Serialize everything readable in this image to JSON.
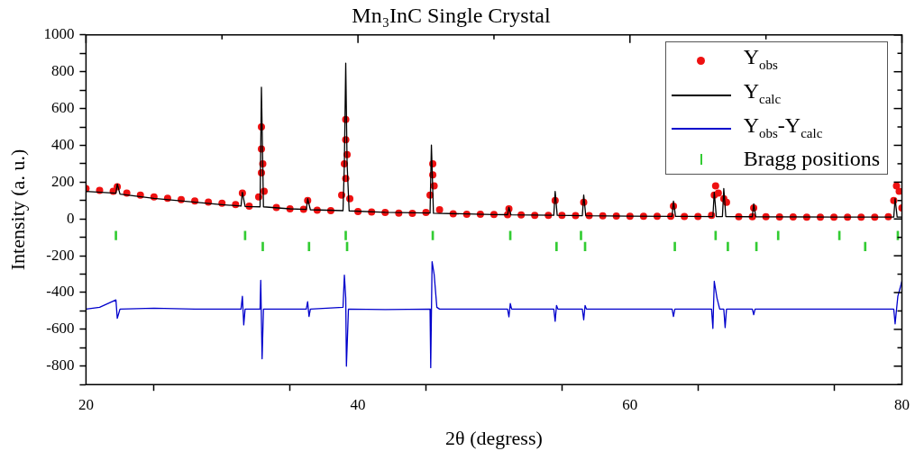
{
  "chart_data": {
    "type": "line",
    "title": "Mn₃InC Single Crystal",
    "xlabel": "2θ (degress)",
    "ylabel": "Intensity (a. u.)",
    "xlim": [
      20,
      80
    ],
    "xticks": [
      20,
      {
        "value": 30,
        "label": null
      },
      40,
      {
        "value": 50,
        "label": null
      },
      60,
      {
        "value": 70,
        "label": null
      },
      80
    ],
    "ylim": [
      -900,
      1000
    ],
    "yticks": [
      {
        "value": -900,
        "label": null
      },
      -800,
      {
        "value": -700,
        "label": null
      },
      -600,
      {
        "value": -500,
        "label": null
      },
      -400,
      {
        "value": -300,
        "label": null
      },
      -200,
      {
        "value": -100,
        "label": null
      },
      0,
      {
        "value": 100,
        "label": null
      },
      200,
      {
        "value": 300,
        "label": null
      },
      400,
      {
        "value": 500,
        "label": null
      },
      600,
      {
        "value": 700,
        "label": null
      },
      800,
      {
        "value": 900,
        "label": null
      },
      1000
    ],
    "grid": false,
    "legend": "top right",
    "series": [
      {
        "name": "Y$_{obs}$",
        "type": "scatter",
        "marker": "circle",
        "color": "#ee1111",
        "x": [
          20,
          21,
          22,
          22.3,
          23,
          24,
          25,
          26,
          27,
          28,
          29,
          30,
          31,
          31.5,
          32,
          32.7,
          32.9,
          32.9,
          32.9,
          33.0,
          33.1,
          34,
          35,
          36,
          36.3,
          37,
          38,
          38.8,
          39.0,
          39.1,
          39.1,
          39.1,
          39.2,
          39.4,
          40,
          41,
          42,
          43,
          44,
          45,
          45.3,
          45.5,
          45.5,
          45.6,
          46,
          47,
          48,
          49,
          50,
          51,
          51.1,
          52,
          53,
          54,
          54.5,
          55,
          56,
          56.6,
          57,
          58,
          59,
          60,
          61,
          62,
          63,
          63.2,
          64,
          65,
          66,
          66.2,
          66.3,
          66.5,
          66.9,
          67.1,
          68,
          69,
          69.1,
          70,
          71,
          72,
          73,
          74,
          75,
          76,
          77,
          78,
          79,
          79.4,
          79.6,
          79.8,
          80
        ],
        "values": [
          165,
          155,
          150,
          175,
          140,
          130,
          120,
          112,
          105,
          98,
          92,
          85,
          78,
          140,
          70,
          120,
          250,
          380,
          500,
          300,
          150,
          62,
          55,
          52,
          100,
          48,
          45,
          130,
          300,
          430,
          540,
          220,
          350,
          110,
          40,
          38,
          35,
          32,
          30,
          35,
          130,
          300,
          240,
          180,
          50,
          28,
          26,
          25,
          24,
          23,
          55,
          22,
          20,
          20,
          100,
          20,
          18,
          90,
          18,
          17,
          16,
          15,
          15,
          14,
          14,
          70,
          13,
          13,
          20,
          130,
          180,
          140,
          110,
          90,
          12,
          12,
          60,
          12,
          11,
          11,
          10,
          10,
          10,
          10,
          10,
          10,
          12,
          100,
          180,
          150,
          60
        ]
      },
      {
        "name": "Y$_{calc}$",
        "color": "#000000",
        "x": [
          20,
          22.2,
          22.3,
          22.5,
          25,
          30,
          31.4,
          31.5,
          31.7,
          32.8,
          32.9,
          33.05,
          35,
          36.2,
          36.3,
          36.5,
          38.9,
          39.0,
          39.1,
          39.2,
          39.35,
          42,
          45.3,
          45.4,
          45.55,
          50,
          51.0,
          51.1,
          51.25,
          54.4,
          54.5,
          54.65,
          56.5,
          56.6,
          56.75,
          60,
          63.1,
          63.2,
          63.35,
          66.1,
          66.2,
          66.35,
          66.8,
          66.9,
          67.05,
          69.0,
          69.1,
          69.25,
          75,
          79.4,
          79.5,
          79.65,
          80
        ],
        "values": [
          150,
          140,
          190,
          135,
          112,
          78,
          70,
          145,
          68,
          66,
          716,
          66,
          55,
          52,
          110,
          50,
          45,
          300,
          847,
          300,
          44,
          36,
          32,
          402,
          31,
          24,
          23,
          63,
          22,
          20,
          150,
          20,
          18,
          130,
          18,
          15,
          14,
          97,
          14,
          13,
          145,
          13,
          13,
          165,
          13,
          12,
          82,
          12,
          10,
          10,
          111,
          10,
          10
        ]
      },
      {
        "name": "Y$_{obs}$-Y$_{calc}$",
        "color": "#0000cc",
        "x": [
          20,
          21,
          22.2,
          22.3,
          22.5,
          25,
          28,
          31.4,
          31.5,
          31.6,
          31.7,
          32.8,
          32.85,
          32.95,
          33.05,
          36.2,
          36.3,
          36.4,
          36.5,
          38.9,
          39.0,
          39.1,
          39.15,
          39.3,
          42,
          45.3,
          45.35,
          45.45,
          45.6,
          45.8,
          46,
          51.0,
          51.1,
          51.2,
          51.3,
          54.4,
          54.5,
          54.6,
          54.7,
          56.5,
          56.6,
          56.7,
          56.8,
          63.1,
          63.2,
          63.3,
          66.0,
          66.1,
          66.2,
          66.4,
          66.6,
          66.9,
          67.0,
          67.1,
          69.0,
          69.1,
          69.2,
          79.4,
          79.5,
          79.7,
          80
        ],
        "values": [
          -490,
          -480,
          -440,
          -540,
          -490,
          -485,
          -490,
          -490,
          -420,
          -576,
          -490,
          -490,
          -334,
          -760,
          -490,
          -490,
          -450,
          -530,
          -490,
          -480,
          -305,
          -430,
          -800,
          -490,
          -492,
          -490,
          -808,
          -232,
          -300,
          -480,
          -490,
          -490,
          -532,
          -460,
          -490,
          -490,
          -556,
          -470,
          -490,
          -490,
          -548,
          -470,
          -490,
          -490,
          -530,
          -490,
          -490,
          -595,
          -339,
          -430,
          -490,
          -490,
          -590,
          -490,
          -490,
          -520,
          -490,
          -490,
          -570,
          -420,
          -339
        ]
      },
      {
        "name": "Bragg positions",
        "type": "bar",
        "color": "#33cc33",
        "base": [
          -114,
          -114,
          -174,
          -174,
          -114,
          -174,
          -114,
          -114,
          -174,
          -114,
          -174,
          -174,
          -114,
          -174,
          -174,
          -114,
          -114,
          -174,
          -114
        ],
        "x": [
          22.2,
          31.7,
          33.0,
          36.4,
          39.1,
          39.2,
          45.5,
          51.2,
          54.6,
          56.4,
          56.7,
          63.3,
          66.3,
          67.2,
          69.3,
          70.9,
          75.4,
          77.3,
          79.7
        ],
        "values": [
          48,
          48,
          48,
          48,
          48,
          48,
          48,
          48,
          48,
          48,
          48,
          48,
          48,
          48,
          48,
          48,
          48,
          48,
          48
        ]
      }
    ]
  }
}
